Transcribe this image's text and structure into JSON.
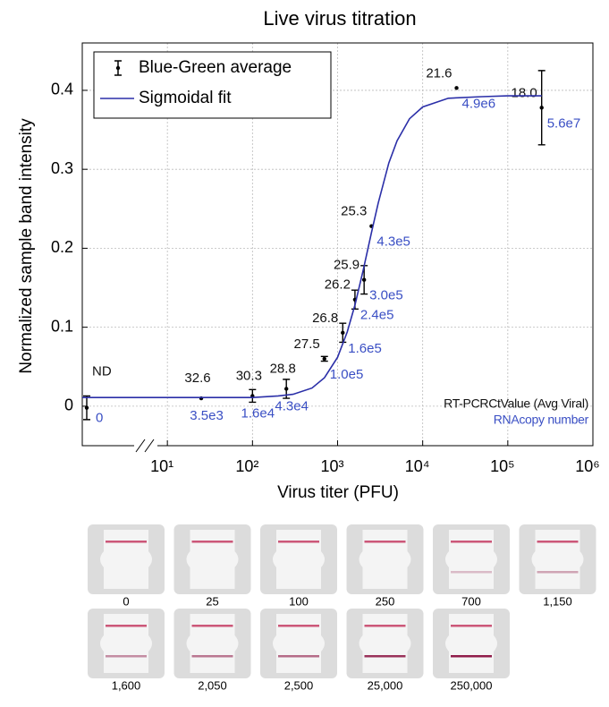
{
  "chart_data": {
    "type": "scatter",
    "title": "Live virus titration",
    "x_label": "Virus titer (PFU)",
    "y_label": "Normalized sample band intensity",
    "x_scale": "log",
    "grid": true,
    "legend_position": "upper left",
    "xlim": [
      1,
      1000000
    ],
    "xticks": [
      {
        "value": 10,
        "label": "10¹"
      },
      {
        "value": 100,
        "label": "10²"
      },
      {
        "value": 1000,
        "label": "10³"
      },
      {
        "value": 10000,
        "label": "10⁴"
      },
      {
        "value": 100000,
        "label": "10⁵"
      },
      {
        "value": 1000000,
        "label": "10⁶"
      }
    ],
    "ylim": [
      -0.05,
      0.46
    ],
    "yticks": [
      0,
      0.1,
      0.2,
      0.3,
      0.4
    ],
    "annotations": [
      "RT-PCRCtValue (Avg Viral)",
      "RNAcopy number"
    ],
    "annotation_colors": [
      "#111111",
      "#3a4fc4"
    ],
    "series": [
      {
        "name": "Blue-Green average",
        "color": "#000000",
        "kind": "errorbar",
        "x": [
          0,
          25,
          100,
          250,
          700,
          1150,
          1600,
          2050,
          2500,
          25000,
          250000
        ],
        "values": [
          -0.002,
          0.01,
          0.013,
          0.022,
          0.06,
          0.093,
          0.135,
          0.16,
          0.228,
          0.403,
          0.378
        ],
        "errors": [
          0.015,
          null,
          0.008,
          0.012,
          0.003,
          0.012,
          0.012,
          0.018,
          null,
          null,
          0.047
        ],
        "ct_labels": [
          "ND",
          "32.6",
          "30.3",
          "28.8",
          "27.5",
          "26.8",
          "26.2",
          "25.9",
          "25.3",
          "21.6",
          "18.0"
        ],
        "rna_labels": [
          "0",
          "3.5e3",
          "1.6e4",
          "4.3e4",
          "1.0e5",
          "1.6e5",
          "2.4e5",
          "3.0e5",
          "4.3e5",
          "4.9e6",
          "5.6e7"
        ]
      },
      {
        "name": "Sigmoidal fit",
        "color": "#2b2fa8",
        "kind": "line",
        "x": [
          1,
          10,
          30,
          100,
          200,
          300,
          500,
          700,
          1000,
          1300,
          1600,
          2000,
          2500,
          3000,
          4000,
          5000,
          7000,
          10000,
          20000,
          50000,
          100000,
          250000
        ],
        "values": [
          0.011,
          0.011,
          0.011,
          0.011,
          0.013,
          0.015,
          0.023,
          0.036,
          0.062,
          0.094,
          0.128,
          0.172,
          0.22,
          0.257,
          0.308,
          0.336,
          0.364,
          0.379,
          0.39,
          0.392,
          0.393,
          0.393
        ]
      }
    ]
  },
  "test_strips": {
    "labels": [
      "0",
      "25",
      "100",
      "250",
      "700",
      "1,150",
      "1,600",
      "2,050",
      "2,500",
      "25,000",
      "250,000"
    ]
  }
}
